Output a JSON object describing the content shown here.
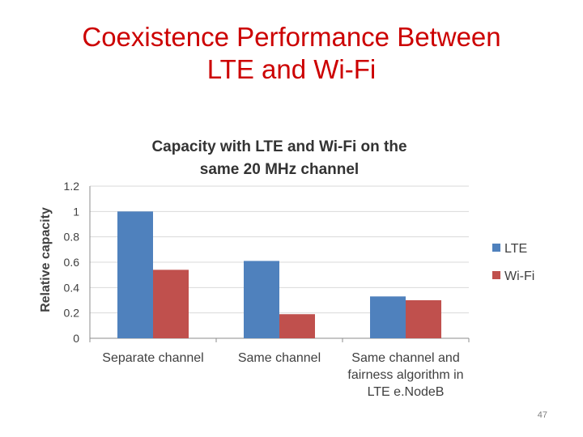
{
  "slide": {
    "title_line1": "Coexistence Performance Between",
    "title_line2": "LTE and Wi-Fi",
    "page_number": "47",
    "title_color": "#cc0000"
  },
  "chart_data": {
    "type": "bar",
    "title_lines": [
      "Capacity with LTE and Wi-Fi on the",
      "same 20 MHz channel"
    ],
    "xlabel": "",
    "ylabel": "Relative capacity",
    "categories": [
      [
        "Separate channel"
      ],
      [
        "Same channel"
      ],
      [
        "Same channel and",
        "fairness algorithm in",
        "LTE e.NodeB"
      ]
    ],
    "series": [
      {
        "name": "LTE",
        "values": [
          1.0,
          0.61,
          0.33
        ],
        "color": "#4f81bd"
      },
      {
        "name": "Wi-Fi",
        "values": [
          0.54,
          0.19,
          0.3
        ],
        "color": "#c0504d"
      }
    ],
    "ylim": [
      0,
      1.2
    ],
    "yticks": [
      "0",
      "0.2",
      "0.4",
      "0.6",
      "0.8",
      "1",
      "1.2"
    ],
    "grid": true,
    "legend_position": "right"
  }
}
